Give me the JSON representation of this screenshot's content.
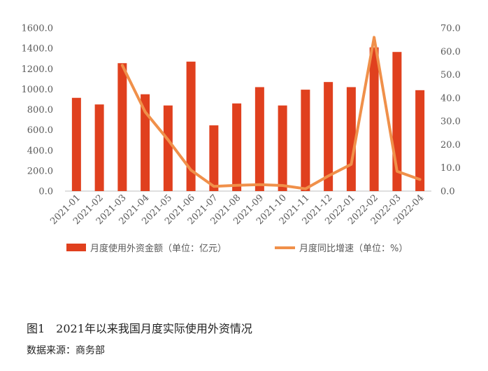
{
  "chart_data": {
    "type": "bar",
    "categories": [
      "2021-01",
      "2021-02",
      "2021-03",
      "2021-04",
      "2021-05",
      "2021-06",
      "2021-07",
      "2021-08",
      "2021-09",
      "2021-10",
      "2021-11",
      "2021-12",
      "2022-01",
      "2022-02",
      "2022-03",
      "2022-04"
    ],
    "series": [
      {
        "name": "月度使用外资金额（单位：亿元）",
        "type": "bar",
        "axis": "left",
        "color": "#E0401E",
        "values": [
          915,
          850,
          1255,
          950,
          840,
          1270,
          645,
          860,
          1020,
          840,
          995,
          1070,
          1020,
          1410,
          1365,
          990
        ]
      },
      {
        "name": "月度同比增速（单位：%）",
        "type": "line",
        "axis": "right",
        "color": "#F0904A",
        "values": [
          null,
          null,
          54.0,
          34.0,
          22.0,
          9.0,
          2.0,
          2.5,
          2.8,
          2.4,
          1.0,
          6.5,
          11.5,
          66.0,
          8.5,
          5.0
        ]
      }
    ],
    "ylim_left": [
      0,
      1600
    ],
    "yticks_left": [
      "0.0",
      "200.0",
      "400.0",
      "600.0",
      "800.0",
      "1000.0",
      "1200.0",
      "1400.0",
      "1600.0"
    ],
    "ylim_right": [
      0,
      70
    ],
    "yticks_right": [
      "0.0",
      "10.0",
      "20.0",
      "30.0",
      "40.0",
      "50.0",
      "60.0",
      "70.0"
    ],
    "grid": false,
    "legend": "bottom"
  },
  "caption": "图1　2021年以来我国月度实际使用外资情况",
  "source": "数据来源：商务部"
}
